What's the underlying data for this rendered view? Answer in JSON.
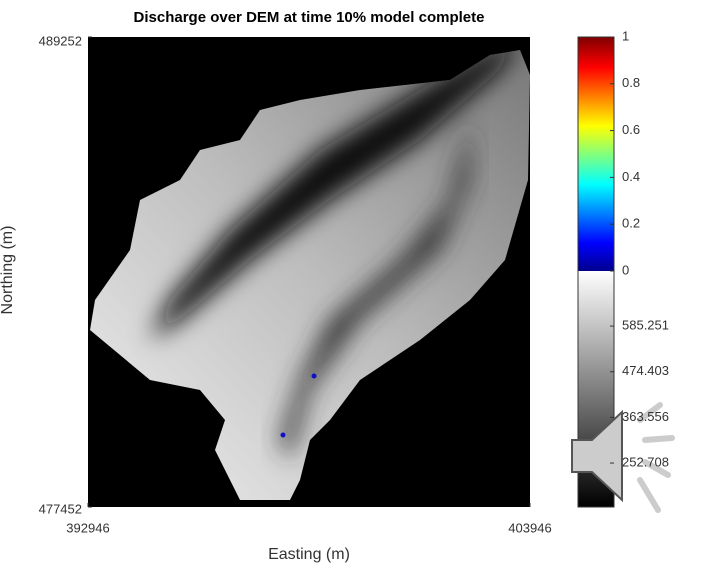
{
  "chart_data": {
    "type": "image",
    "title": "Discharge over DEM at time 10% model complete",
    "xlabel": "Easting (m)",
    "ylabel": "Northing (m)",
    "xlim": [
      392946,
      403946
    ],
    "xticks": [
      392946,
      403946
    ],
    "ylim": [
      477452,
      489252
    ],
    "yticks": [
      477452,
      489252
    ],
    "points": {
      "color": "#1010c8",
      "x": [
        398571,
        397799
      ],
      "y": [
        480741,
        479259
      ]
    },
    "colorbar": {
      "discharge_lim": [
        0,
        1
      ],
      "discharge_ticks": [
        0,
        0.2,
        0.4,
        0.6,
        0.8,
        1
      ],
      "dem_lim": [
        146,
        719
      ],
      "dem_ticks": [
        252.708,
        363.556,
        474.403,
        585.251
      ]
    }
  }
}
